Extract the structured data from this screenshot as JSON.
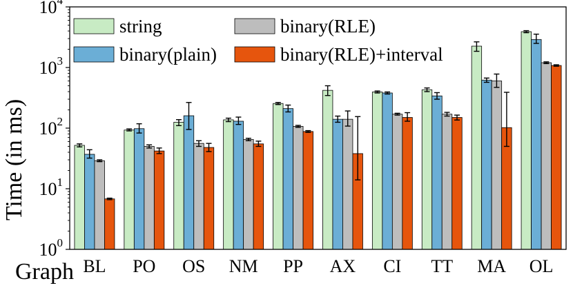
{
  "chart_data": {
    "type": "bar",
    "scale": "log",
    "title": "",
    "xlabel": "Graph",
    "ylabel": "Time (in ms)",
    "ylim": [
      1,
      10000
    ],
    "yticks": [
      {
        "value": 1,
        "base": "10",
        "exp": "0"
      },
      {
        "value": 10,
        "base": "10",
        "exp": "1"
      },
      {
        "value": 100,
        "base": "10",
        "exp": "2"
      },
      {
        "value": 1000,
        "base": "10",
        "exp": "3"
      },
      {
        "value": 10000,
        "base": "10",
        "exp": "4"
      }
    ],
    "categories": [
      "BL",
      "PO",
      "OS",
      "NM",
      "PP",
      "AX",
      "CI",
      "TT",
      "MA",
      "OL"
    ],
    "legend_position": "top-left",
    "series": [
      {
        "name": "string",
        "color": "#c8ebc4",
        "values": [
          52,
          93,
          125,
          137,
          255,
          420,
          395,
          430,
          2250,
          3900
        ],
        "err_low": [
          49,
          90,
          110,
          128,
          245,
          345,
          380,
          400,
          1850,
          3750
        ],
        "err_high": [
          55,
          97,
          138,
          146,
          265,
          500,
          410,
          460,
          2650,
          4050
        ]
      },
      {
        "name": "binary(plain)",
        "color": "#6baed6",
        "values": [
          37,
          98,
          160,
          130,
          210,
          140,
          380,
          340,
          620,
          2900
        ],
        "err_low": [
          32,
          83,
          95,
          115,
          185,
          125,
          365,
          300,
          570,
          2500
        ],
        "err_high": [
          44,
          118,
          265,
          152,
          240,
          158,
          395,
          385,
          670,
          3550
        ]
      },
      {
        "name": "binary(RLE)",
        "color": "#bdbdbd",
        "values": [
          29,
          50,
          56,
          65,
          107,
          140,
          170,
          170,
          600,
          1200
        ],
        "err_low": [
          28,
          47,
          50,
          62,
          103,
          108,
          164,
          158,
          470,
          1160
        ],
        "err_high": [
          30,
          53,
          62,
          68,
          111,
          192,
          176,
          182,
          780,
          1240
        ]
      },
      {
        "name": "binary(RLE)+interval",
        "color": "#e6550d",
        "values": [
          6.8,
          42,
          48,
          55,
          88,
          38,
          150,
          150,
          102,
          1080
        ],
        "err_low": [
          6.6,
          38,
          41,
          50,
          85,
          14,
          130,
          136,
          50,
          1050
        ],
        "err_high": [
          7.0,
          47,
          56,
          61,
          91,
          155,
          180,
          164,
          390,
          1110
        ]
      }
    ]
  }
}
